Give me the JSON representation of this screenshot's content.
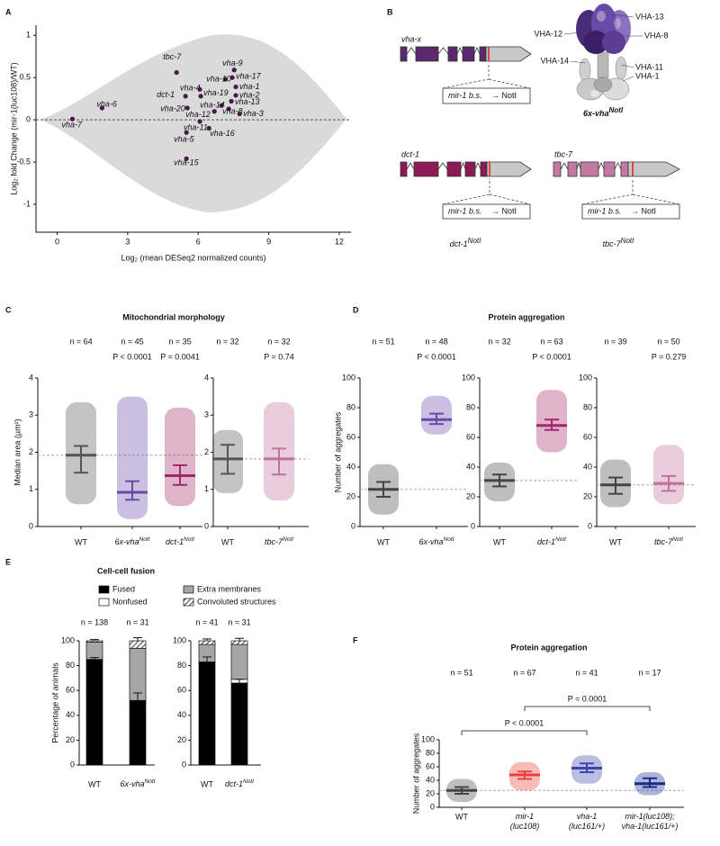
{
  "panel_labels": [
    "A",
    "B",
    "C",
    "D",
    "E",
    "F"
  ],
  "diagram": {
    "genes": [
      {
        "name": "vha-x",
        "color": "#5b2a6e",
        "site": "mir-1 b.s.",
        "edit": "→ NotI"
      },
      {
        "name": "dct-1",
        "color": "#8e1a55",
        "site": "mir-1 b.s.",
        "edit": "→ NotI",
        "allele": {
          "text": "dct-1",
          "sup": "NotI"
        }
      },
      {
        "name": "tbc-7",
        "color": "#c07aa3",
        "site": "mir-1 b.s.",
        "edit": "→ NotI",
        "allele": {
          "text": "tbc-7",
          "sup": "NotI"
        }
      }
    ],
    "complex": {
      "allele": {
        "text": "6x-vha",
        "sup": "NotI"
      },
      "subunits": [
        "VHA-13",
        "VHA-12",
        "VHA-8",
        "VHA-14",
        "VHA-11",
        "VHA-1"
      ]
    }
  },
  "chart_data": [
    {
      "type": "scatter",
      "xlabel": "Log₂ (mean DESeq2 normalized counts)",
      "ylabel": "Log₂ fold Change (mir-1(luc108)/WT)",
      "xlim": [
        -0.9,
        12.5
      ],
      "ylim": [
        -1.33,
        1.12
      ],
      "xticks": [
        0,
        3,
        6,
        9,
        12
      ],
      "yticks": [
        -1,
        -0.5,
        0,
        0.5,
        1
      ],
      "reference_line": 0,
      "color": "#4b1650",
      "background_color": "#d3d3d3",
      "points": {
        "labels": [
          "vha-7",
          "vha-6",
          "tbc-7",
          "dct-1",
          "vha-4",
          "vha-19",
          "vha-20",
          "vha-12",
          "vha-14",
          "vha-13",
          "vha-8",
          "vha-3",
          "vha-2",
          "vha-1",
          "vha-17",
          "vha-10",
          "vha-9",
          "vha-11",
          "vha-16",
          "vha-5",
          "vha-15"
        ],
        "x": [
          0.65,
          1.91,
          5.08,
          5.46,
          6.07,
          6.11,
          5.54,
          6.69,
          6.99,
          7.41,
          7.3,
          7.76,
          7.6,
          7.6,
          7.45,
          7.15,
          7.53,
          6.07,
          6.46,
          5.5,
          5.5
        ],
        "y": [
          0.01,
          0.14,
          0.56,
          0.28,
          0.36,
          0.28,
          0.14,
          0.1,
          0.17,
          0.22,
          0.13,
          0.07,
          0.29,
          0.39,
          0.5,
          0.48,
          0.59,
          -0.02,
          -0.1,
          -0.15,
          -0.46
        ]
      }
    },
    {
      "type": "dotplot",
      "title": "Mitochondrial morphology",
      "ylabel": "Median area (µm²)",
      "ylim": [
        0,
        4
      ],
      "yticks": [
        0,
        1,
        2,
        3,
        4
      ],
      "panels": [
        {
          "groups": [
            {
              "category": "WT",
              "n_label": "n = 64",
              "median": 1.92,
              "lower": 1.45,
              "upper": 2.17,
              "min": 0.6,
              "max": 3.35,
              "color": "#555555"
            },
            {
              "category": {
                "text": "6x-vha",
                "sup": "NotI"
              },
              "n_label": "n = 45",
              "p_label": "P < 0.0001",
              "median": 0.92,
              "lower": 0.72,
              "upper": 1.22,
              "min": 0.2,
              "max": 3.5,
              "color": "#6a4aa8"
            },
            {
              "category": {
                "text": "dct-1",
                "sup": "NotI"
              },
              "n_label": "n = 35",
              "p_label": "P = 0.0041",
              "median": 1.37,
              "lower": 1.12,
              "upper": 1.65,
              "min": 0.55,
              "max": 3.2,
              "color": "#a3276b"
            }
          ]
        },
        {
          "groups": [
            {
              "category": "WT",
              "n_label": "n = 32",
              "median": 1.82,
              "lower": 1.42,
              "upper": 2.2,
              "min": 0.9,
              "max": 2.6,
              "color": "#555555"
            },
            {
              "category": {
                "text": "tbc-7",
                "sup": "NotI"
              },
              "n_label": "n = 32",
              "p_label": "P = 0.74",
              "median": 1.82,
              "lower": 1.4,
              "upper": 2.1,
              "min": 0.7,
              "max": 3.35,
              "color": "#c0719d"
            }
          ]
        }
      ]
    },
    {
      "type": "dotplot",
      "title": "Protein aggregation",
      "ylabel": "Number of aggregates",
      "ylim": [
        0,
        100
      ],
      "yticks": [
        0,
        20,
        40,
        60,
        80,
        100
      ],
      "panels": [
        {
          "groups": [
            {
              "category": "WT",
              "n_label": "n = 51",
              "median": 25,
              "lower": 20,
              "upper": 30,
              "min": 8,
              "max": 42,
              "color": "#444444"
            },
            {
              "category": {
                "text": "6x-vha",
                "sup": "NotI"
              },
              "n_label": "n = 48",
              "p_label": "P < 0.0001",
              "median": 72,
              "lower": 69,
              "upper": 76,
              "min": 62,
              "max": 88,
              "color": "#6a4aa8"
            }
          ]
        },
        {
          "groups": [
            {
              "category": "WT",
              "n_label": "n = 32",
              "median": 31,
              "lower": 27,
              "upper": 35,
              "min": 17,
              "max": 43,
              "color": "#444444"
            },
            {
              "category": {
                "text": "dct-1",
                "sup": "NotI"
              },
              "n_label": "n = 63",
              "p_label": "P < 0.0001",
              "median": 68,
              "lower": 65,
              "upper": 72,
              "min": 50,
              "max": 92,
              "color": "#a3276b"
            }
          ]
        },
        {
          "groups": [
            {
              "category": "WT",
              "n_label": "n = 39",
              "median": 28,
              "lower": 22,
              "upper": 33,
              "min": 13,
              "max": 45,
              "color": "#444444"
            },
            {
              "category": {
                "text": "tbc-7",
                "sup": "NotI"
              },
              "n_label": "n = 50",
              "p_label": "P = 0.279",
              "median": 29,
              "lower": 24,
              "upper": 34,
              "min": 15,
              "max": 55,
              "color": "#c0719d"
            }
          ]
        }
      ]
    },
    {
      "type": "stacked_bar",
      "title": "Cell-cell fusion",
      "ylabel": "Percentage  of animals",
      "ylim": [
        0,
        100
      ],
      "yticks": [
        0,
        20,
        40,
        60,
        80,
        100
      ],
      "legend": [
        {
          "name": "Fused",
          "color": "#000000"
        },
        {
          "name": "Nonfused",
          "color": "#ffffff"
        },
        {
          "name": "Extra membranes",
          "color": "#a6a6a6"
        },
        {
          "name": "Convoluted structures",
          "color": "#000000",
          "pattern": "hatch"
        }
      ],
      "panels": [
        {
          "categories": [
            "WT",
            {
              "text": "6x-vha",
              "sup": "NotI"
            }
          ],
          "n_labels": [
            "n = 138",
            "n = 31"
          ],
          "values": [
            [
              85,
              0,
              14,
              1
            ],
            [
              52,
              0,
              42,
              6
            ]
          ],
          "fused_errors": [
            1.5,
            6
          ],
          "top_errors": [
            1,
            2.5
          ]
        },
        {
          "categories": [
            "WT",
            {
              "text": "dct-1",
              "sup": "NotI"
            }
          ],
          "n_labels": [
            "n = 41",
            "n = 31"
          ],
          "values": [
            [
              83,
              0,
              14,
              3
            ],
            [
              66,
              3,
              28,
              3
            ]
          ],
          "fused_errors": [
            4,
            3
          ],
          "top_errors": [
            1.5,
            2
          ]
        }
      ]
    },
    {
      "type": "dotplot",
      "title": "Protein aggregation",
      "ylabel": "Number of aggregates",
      "ylim": [
        0,
        100
      ],
      "yticks": [
        0,
        20,
        40,
        60,
        80,
        100
      ],
      "comparisons": [
        "P < 0.0001",
        "P = 0.0001"
      ],
      "panels": [
        {
          "groups": [
            {
              "category": "WT",
              "n_label": "n = 51",
              "median": 25,
              "lower": 20,
              "upper": 30,
              "min": 8,
              "max": 42,
              "color": "#444444"
            },
            {
              "category": {
                "lines": [
                  "mir-1",
                  "(luc108)"
                ]
              },
              "n_label": "n = 67",
              "median": 48,
              "lower": 42,
              "upper": 53,
              "min": 25,
              "max": 67,
              "color": "#e8403a"
            },
            {
              "category": {
                "lines": [
                  "vha-1",
                  "(luc161/+)"
                ]
              },
              "n_label": "n = 41",
              "median": 58,
              "lower": 52,
              "upper": 65,
              "min": 35,
              "max": 77,
              "color": "#3a45b0"
            },
            {
              "category": {
                "lines": [
                  "mir-1(luc108);",
                  "vha-1(luc161/+)"
                ]
              },
              "n_label": "n = 17",
              "median": 35,
              "lower": 30,
              "upper": 43,
              "min": 18,
              "max": 52,
              "color": "#1a2a8a"
            }
          ]
        }
      ]
    }
  ]
}
